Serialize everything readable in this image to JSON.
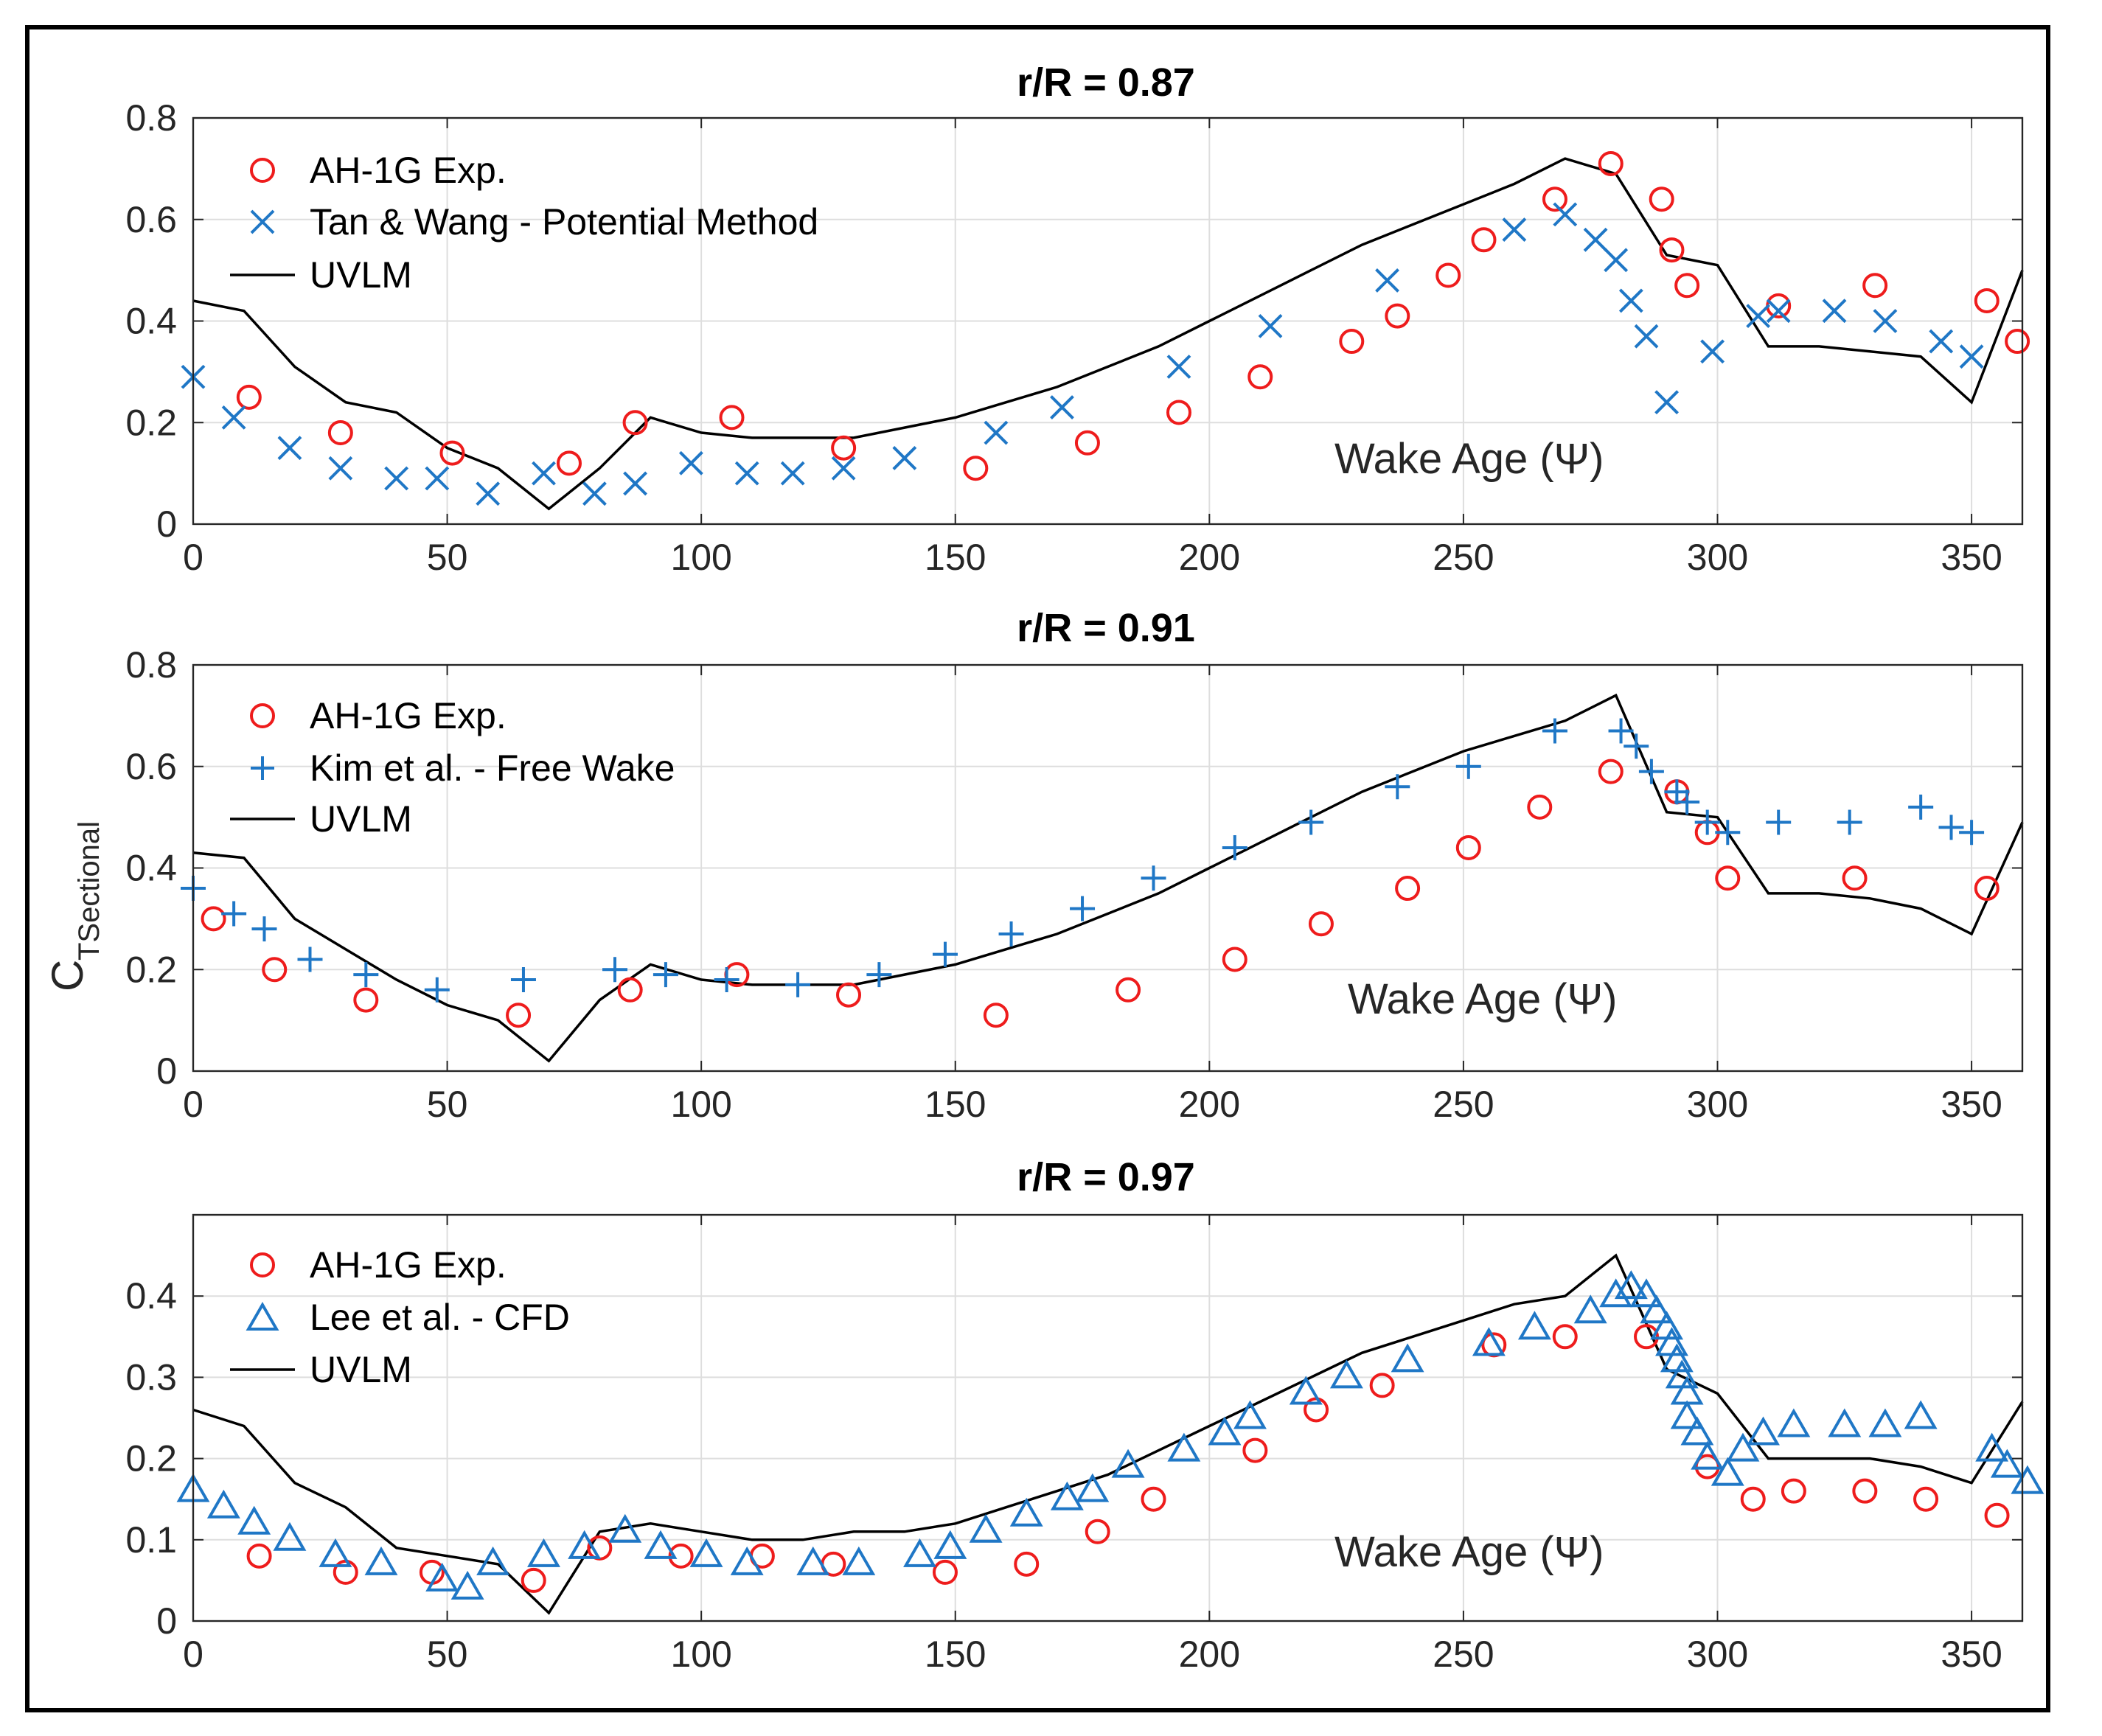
{
  "colors": {
    "experiment": "#ee1c1c",
    "reference": "#1f77c6",
    "uvlm": "#000000"
  },
  "ylabel": {
    "main": "C",
    "sub": "TSectional"
  },
  "chart_data": [
    {
      "type": "line",
      "title": "r/R = 0.87",
      "xlabel": "",
      "annotation": "Wake Age (Ψ)",
      "xlim": [
        0,
        360
      ],
      "ylim": [
        0,
        0.8
      ],
      "xticks": [
        0,
        50,
        100,
        150,
        200,
        250,
        300,
        350
      ],
      "xtick_labels": [
        "0",
        "50",
        "100",
        "150",
        "200",
        "250",
        "300",
        "350"
      ],
      "yticks": [
        0,
        0.2,
        0.4,
        0.6,
        0.8
      ],
      "ytick_labels": [
        "0",
        "0.2",
        "0.4",
        "0.6",
        "0.8"
      ],
      "legend": [
        "AH-1G Exp.",
        "Tan & Wang - Potential Method",
        "UVLM"
      ],
      "series": [
        {
          "name": "AH-1G Exp.",
          "marker": "circle",
          "x": [
            11,
            29,
            51,
            74,
            87,
            106,
            128,
            154,
            176,
            194,
            210,
            228,
            237,
            247,
            254,
            268,
            279,
            289,
            291,
            294,
            312,
            331,
            353,
            359
          ],
          "y": [
            0.25,
            0.18,
            0.14,
            0.12,
            0.2,
            0.21,
            0.15,
            0.11,
            0.16,
            0.22,
            0.29,
            0.36,
            0.41,
            0.49,
            0.56,
            0.64,
            0.71,
            0.64,
            0.54,
            0.47,
            0.43,
            0.47,
            0.44,
            0.36
          ]
        },
        {
          "name": "Tan & Wang - Potential Method",
          "marker": "x",
          "x": [
            0,
            8,
            19,
            29,
            40,
            48,
            58,
            69,
            79,
            87,
            98,
            109,
            118,
            128,
            140,
            158,
            171,
            194,
            212,
            235,
            260,
            270,
            276,
            280,
            283,
            286,
            290,
            299,
            308,
            312,
            323,
            333,
            344,
            350
          ],
          "y": [
            0.29,
            0.21,
            0.15,
            0.11,
            0.09,
            0.09,
            0.06,
            0.1,
            0.06,
            0.08,
            0.12,
            0.1,
            0.1,
            0.11,
            0.13,
            0.18,
            0.23,
            0.31,
            0.39,
            0.48,
            0.58,
            0.61,
            0.56,
            0.52,
            0.44,
            0.37,
            0.24,
            0.34,
            0.41,
            0.42,
            0.42,
            0.4,
            0.36,
            0.33
          ]
        },
        {
          "name": "UVLM",
          "marker": "line",
          "x": [
            0,
            10,
            20,
            30,
            40,
            50,
            60,
            70,
            80,
            90,
            100,
            110,
            120,
            130,
            140,
            150,
            160,
            170,
            180,
            190,
            200,
            210,
            220,
            230,
            240,
            250,
            260,
            270,
            280,
            290,
            300,
            310,
            320,
            330,
            340,
            350,
            360
          ],
          "y": [
            0.44,
            0.42,
            0.31,
            0.24,
            0.22,
            0.15,
            0.11,
            0.03,
            0.11,
            0.21,
            0.18,
            0.17,
            0.17,
            0.17,
            0.19,
            0.21,
            0.24,
            0.27,
            0.31,
            0.35,
            0.4,
            0.45,
            0.5,
            0.55,
            0.59,
            0.63,
            0.67,
            0.72,
            0.69,
            0.53,
            0.51,
            0.35,
            0.35,
            0.34,
            0.33,
            0.24,
            0.5
          ]
        }
      ]
    },
    {
      "type": "line",
      "title": "r/R = 0.91",
      "xlabel": "",
      "annotation": "Wake Age (Ψ)",
      "xlim": [
        0,
        360
      ],
      "ylim": [
        0,
        0.8
      ],
      "xticks": [
        0,
        50,
        100,
        150,
        200,
        250,
        300,
        350
      ],
      "xtick_labels": [
        "0",
        "50",
        "100",
        "150",
        "200",
        "250",
        "300",
        "350"
      ],
      "yticks": [
        0,
        0.2,
        0.4,
        0.6,
        0.8
      ],
      "ytick_labels": [
        "0",
        "0.2",
        "0.4",
        "0.6",
        "0.8"
      ],
      "legend": [
        "AH-1G Exp.",
        "Kim et al. - Free Wake",
        "UVLM"
      ],
      "series": [
        {
          "name": "AH-1G Exp.",
          "marker": "circle",
          "x": [
            4,
            16,
            34,
            64,
            86,
            107,
            129,
            158,
            184,
            205,
            222,
            239,
            251,
            265,
            279,
            292,
            298,
            302,
            327,
            353
          ],
          "y": [
            0.3,
            0.2,
            0.14,
            0.11,
            0.16,
            0.19,
            0.15,
            0.11,
            0.16,
            0.22,
            0.29,
            0.36,
            0.44,
            0.52,
            0.59,
            0.55,
            0.47,
            0.38,
            0.38,
            0.36
          ]
        },
        {
          "name": "Kim et al. - Free Wake",
          "marker": "plus",
          "x": [
            0,
            8,
            14,
            23,
            34,
            48,
            65,
            83,
            93,
            105,
            119,
            135,
            148,
            161,
            175,
            189,
            205,
            220,
            237,
            251,
            268,
            281,
            284,
            287,
            292,
            294,
            298,
            302,
            312,
            326,
            340,
            346,
            350
          ],
          "y": [
            0.36,
            0.31,
            0.28,
            0.22,
            0.19,
            0.16,
            0.18,
            0.2,
            0.19,
            0.18,
            0.17,
            0.19,
            0.23,
            0.27,
            0.32,
            0.38,
            0.44,
            0.49,
            0.56,
            0.6,
            0.67,
            0.67,
            0.64,
            0.59,
            0.55,
            0.53,
            0.49,
            0.47,
            0.49,
            0.49,
            0.52,
            0.48,
            0.47
          ]
        },
        {
          "name": "UVLM",
          "marker": "line",
          "x": [
            0,
            10,
            20,
            30,
            40,
            50,
            60,
            70,
            80,
            90,
            100,
            110,
            120,
            130,
            140,
            150,
            160,
            170,
            180,
            190,
            200,
            210,
            220,
            230,
            240,
            250,
            260,
            270,
            280,
            290,
            300,
            310,
            320,
            330,
            340,
            350,
            360
          ],
          "y": [
            0.43,
            0.42,
            0.3,
            0.24,
            0.18,
            0.13,
            0.1,
            0.02,
            0.14,
            0.21,
            0.18,
            0.17,
            0.17,
            0.17,
            0.19,
            0.21,
            0.24,
            0.27,
            0.31,
            0.35,
            0.4,
            0.45,
            0.5,
            0.55,
            0.59,
            0.63,
            0.66,
            0.69,
            0.74,
            0.51,
            0.5,
            0.35,
            0.35,
            0.34,
            0.32,
            0.27,
            0.49
          ]
        }
      ]
    },
    {
      "type": "line",
      "title": "r/R = 0.97",
      "xlabel": "",
      "annotation": "Wake Age (Ψ)",
      "xlim": [
        0,
        360
      ],
      "ylim": [
        0,
        0.5
      ],
      "xticks": [
        0,
        50,
        100,
        150,
        200,
        250,
        300,
        350
      ],
      "xtick_labels": [
        "0",
        "50",
        "100",
        "150",
        "200",
        "250",
        "300",
        "350"
      ],
      "yticks": [
        0,
        0.1,
        0.2,
        0.3,
        0.4
      ],
      "ytick_labels": [
        "0",
        "0.1",
        "0.2",
        "0.3",
        "0.4"
      ],
      "legend": [
        "AH-1G Exp.",
        "Lee et al. - CFD",
        "UVLM"
      ],
      "series": [
        {
          "name": "AH-1G Exp.",
          "marker": "circle",
          "x": [
            13,
            30,
            47,
            67,
            80,
            96,
            112,
            126,
            148,
            164,
            178,
            189,
            209,
            221,
            234,
            256,
            270,
            286,
            298,
            307,
            315,
            329,
            341,
            355
          ],
          "y": [
            0.08,
            0.06,
            0.06,
            0.05,
            0.09,
            0.08,
            0.08,
            0.07,
            0.06,
            0.07,
            0.11,
            0.15,
            0.21,
            0.26,
            0.29,
            0.34,
            0.35,
            0.35,
            0.19,
            0.15,
            0.16,
            0.16,
            0.15,
            0.13
          ]
        },
        {
          "name": "Lee et al. - CFD",
          "marker": "triangle",
          "x": [
            0,
            6,
            12,
            19,
            28,
            37,
            49,
            54,
            59,
            69,
            77,
            85,
            92,
            101,
            109,
            122,
            131,
            143,
            149,
            156,
            164,
            172,
            177,
            184,
            195,
            203,
            208,
            219,
            227,
            239,
            255,
            264,
            275,
            280,
            283,
            286,
            288,
            290,
            291,
            292,
            293,
            294,
            294,
            296,
            298,
            302,
            305,
            309,
            315,
            325,
            333,
            340,
            354,
            357,
            361
          ],
          "y": [
            0.16,
            0.14,
            0.12,
            0.1,
            0.08,
            0.07,
            0.05,
            0.04,
            0.07,
            0.08,
            0.09,
            0.11,
            0.09,
            0.08,
            0.07,
            0.07,
            0.07,
            0.08,
            0.09,
            0.11,
            0.13,
            0.15,
            0.16,
            0.19,
            0.21,
            0.23,
            0.25,
            0.28,
            0.3,
            0.32,
            0.34,
            0.36,
            0.38,
            0.4,
            0.41,
            0.4,
            0.38,
            0.36,
            0.34,
            0.32,
            0.3,
            0.28,
            0.25,
            0.23,
            0.2,
            0.18,
            0.21,
            0.23,
            0.24,
            0.24,
            0.24,
            0.25,
            0.21,
            0.19,
            0.17
          ]
        },
        {
          "name": "UVLM",
          "marker": "line",
          "x": [
            0,
            10,
            20,
            30,
            40,
            50,
            60,
            70,
            80,
            90,
            100,
            110,
            120,
            130,
            140,
            150,
            160,
            170,
            180,
            190,
            200,
            210,
            220,
            230,
            240,
            250,
            260,
            270,
            280,
            290,
            300,
            310,
            320,
            330,
            340,
            350,
            360
          ],
          "y": [
            0.26,
            0.24,
            0.17,
            0.14,
            0.09,
            0.08,
            0.07,
            0.01,
            0.11,
            0.12,
            0.11,
            0.1,
            0.1,
            0.11,
            0.11,
            0.12,
            0.14,
            0.16,
            0.18,
            0.21,
            0.24,
            0.27,
            0.3,
            0.33,
            0.35,
            0.37,
            0.39,
            0.4,
            0.45,
            0.31,
            0.28,
            0.2,
            0.2,
            0.2,
            0.19,
            0.17,
            0.27
          ]
        }
      ]
    }
  ]
}
